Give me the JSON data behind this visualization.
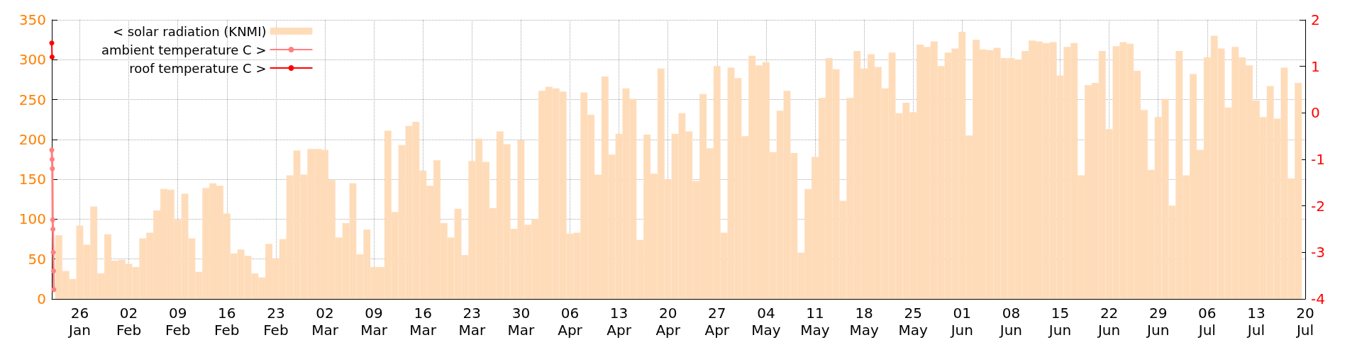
{
  "chart_data": {
    "type": "bar",
    "xlim": [
      "--01-22",
      "--07-20"
    ],
    "xticks": [
      {
        "value": "--01-26",
        "label": "26\nJan"
      },
      {
        "value": "--02-02",
        "label": "02\nFeb"
      },
      {
        "value": "--02-09",
        "label": "09\nFeb"
      },
      {
        "value": "--02-16",
        "label": "16\nFeb"
      },
      {
        "value": "--02-23",
        "label": "23\nFeb"
      },
      {
        "value": "--03-02",
        "label": "02\nMar"
      },
      {
        "value": "--03-09",
        "label": "09\nMar"
      },
      {
        "value": "--03-16",
        "label": "16\nMar"
      },
      {
        "value": "--03-23",
        "label": "23\nMar"
      },
      {
        "value": "--03-30",
        "label": "30\nMar"
      },
      {
        "value": "--04-06",
        "label": "06\nApr"
      },
      {
        "value": "--04-13",
        "label": "13\nApr"
      },
      {
        "value": "--04-20",
        "label": "20\nApr"
      },
      {
        "value": "--04-27",
        "label": "27\nApr"
      },
      {
        "value": "--05-04",
        "label": "04\nMay"
      },
      {
        "value": "--05-11",
        "label": "11\nMay"
      },
      {
        "value": "--05-18",
        "label": "18\nMay"
      },
      {
        "value": "--05-25",
        "label": "25\nMay"
      },
      {
        "value": "--06-01",
        "label": "01\nJun"
      },
      {
        "value": "--06-08",
        "label": "08\nJun"
      },
      {
        "value": "--06-15",
        "label": "15\nJun"
      },
      {
        "value": "--06-22",
        "label": "22\nJun"
      },
      {
        "value": "--06-29",
        "label": "29\nJun"
      },
      {
        "value": "--07-06",
        "label": "06\nJul"
      },
      {
        "value": "--07-13",
        "label": "13\nJul"
      },
      {
        "value": "--07-20",
        "label": "20\nJul"
      }
    ],
    "ylim": [
      0,
      350
    ],
    "yticks": [
      0,
      50,
      100,
      150,
      200,
      250,
      300,
      350
    ],
    "y2lim": [
      -4,
      2
    ],
    "y2ticks": [
      -4,
      -3,
      -2,
      -1,
      0,
      1,
      2
    ],
    "grid": true,
    "legend": "top left",
    "series": [
      {
        "name": "< solar radiation (KNMI)",
        "color": "#ffdcb9",
        "x": [
          "--01-23",
          "--01-24",
          "--01-25",
          "--01-26",
          "--01-27",
          "--01-28",
          "--01-29",
          "--01-30",
          "--01-31",
          "--02-01",
          "--02-02",
          "--02-03",
          "--02-04",
          "--02-05",
          "--02-06",
          "--02-07",
          "--02-08",
          "--02-09",
          "--02-10",
          "--02-11",
          "--02-12",
          "--02-13",
          "--02-14",
          "--02-15",
          "--02-16",
          "--02-17",
          "--02-18",
          "--02-19",
          "--02-20",
          "--02-21",
          "--02-22",
          "--02-23",
          "--02-24",
          "--02-25",
          "--02-26",
          "--02-27",
          "--02-28",
          "--03-01",
          "--03-02",
          "--03-03",
          "--03-04",
          "--03-05",
          "--03-06",
          "--03-07",
          "--03-08",
          "--03-09",
          "--03-10",
          "--03-11",
          "--03-12",
          "--03-13",
          "--03-14",
          "--03-15",
          "--03-16",
          "--03-17",
          "--03-18",
          "--03-19",
          "--03-20",
          "--03-21",
          "--03-22",
          "--03-23",
          "--03-24",
          "--03-25",
          "--03-26",
          "--03-27",
          "--03-28",
          "--03-29",
          "--03-30",
          "--03-31",
          "--04-01",
          "--04-02",
          "--04-03",
          "--04-04",
          "--04-05",
          "--04-06",
          "--04-07",
          "--04-08",
          "--04-09",
          "--04-10",
          "--04-11",
          "--04-12",
          "--04-13",
          "--04-14",
          "--04-15",
          "--04-16",
          "--04-17",
          "--04-18",
          "--04-19",
          "--04-20",
          "--04-21",
          "--04-22",
          "--04-23",
          "--04-24",
          "--04-25",
          "--04-26",
          "--04-27",
          "--04-28",
          "--04-29",
          "--04-30",
          "--05-01",
          "--05-02",
          "--05-03",
          "--05-04",
          "--05-05",
          "--05-06",
          "--05-07",
          "--05-08",
          "--05-09",
          "--05-10",
          "--05-11",
          "--05-12",
          "--05-13",
          "--05-14",
          "--05-15",
          "--05-16",
          "--05-17",
          "--05-18",
          "--05-19",
          "--05-20",
          "--05-21",
          "--05-22",
          "--05-23",
          "--05-24",
          "--05-25",
          "--05-26",
          "--05-27",
          "--05-28",
          "--05-29",
          "--05-30",
          "--05-31",
          "--06-01",
          "--06-02",
          "--06-03",
          "--06-04",
          "--06-05",
          "--06-06",
          "--06-07",
          "--06-08",
          "--06-09",
          "--06-10",
          "--06-11",
          "--06-12",
          "--06-13",
          "--06-14",
          "--06-15",
          "--06-16",
          "--06-17",
          "--06-18",
          "--06-19",
          "--06-20",
          "--06-21",
          "--06-22",
          "--06-23",
          "--06-24",
          "--06-25",
          "--06-26",
          "--06-27",
          "--06-28",
          "--06-29",
          "--06-30",
          "--07-01",
          "--07-02",
          "--07-03",
          "--07-04",
          "--07-05",
          "--07-06",
          "--07-07",
          "--07-08",
          "--07-09",
          "--07-10",
          "--07-11",
          "--07-12",
          "--07-13",
          "--07-14",
          "--07-15",
          "--07-16",
          "--07-17",
          "--07-18",
          "--07-19"
        ],
        "values": [
          80,
          35,
          25,
          92,
          68,
          116,
          32,
          81,
          48,
          49,
          44,
          40,
          76,
          83,
          111,
          138,
          137,
          99,
          132,
          76,
          34,
          139,
          145,
          142,
          107,
          57,
          62,
          54,
          32,
          27,
          69,
          51,
          75,
          155,
          186,
          156,
          188,
          188,
          187,
          149,
          77,
          95,
          145,
          56,
          87,
          40,
          40,
          211,
          109,
          193,
          217,
          222,
          161,
          142,
          174,
          95,
          77,
          113,
          55,
          173,
          201,
          172,
          114,
          210,
          194,
          88,
          199,
          93,
          100,
          261,
          266,
          264,
          260,
          82,
          83,
          259,
          231,
          156,
          279,
          181,
          207,
          264,
          251,
          74,
          206,
          157,
          289,
          150,
          207,
          233,
          210,
          148,
          257,
          189,
          292,
          83,
          290,
          277,
          204,
          305,
          293,
          297,
          184,
          236,
          261,
          183,
          58,
          138,
          178,
          252,
          302,
          288,
          123,
          252,
          311,
          289,
          307,
          291,
          264,
          309,
          233,
          246,
          234,
          319,
          316,
          323,
          292,
          309,
          314,
          335,
          205,
          325,
          313,
          312,
          315,
          302,
          302,
          300,
          311,
          324,
          323,
          321,
          322,
          280,
          316,
          321,
          155,
          268,
          271,
          311,
          213,
          317,
          322,
          320,
          286,
          237,
          162,
          228,
          251,
          117,
          311,
          155,
          282,
          187,
          303,
          330,
          314,
          240,
          316,
          303,
          293,
          249,
          228,
          267,
          226,
          290,
          151,
          271
        ]
      },
      {
        "name": "ambient temperature C >",
        "type": "line",
        "axis": "y2",
        "color": "#ff7f7f",
        "marker": "circle",
        "x": [
          "--01-22T00:00",
          "--01-22T01:00",
          "--01-22T02:00",
          "--01-22T03:00",
          "--01-22T04:00",
          "--01-22T05:00",
          "--01-22T06:00",
          "--01-22T07:00"
        ],
        "values": [
          -0.8,
          -1.0,
          -1.2,
          -2.3,
          -2.5,
          -3.0,
          -3.4,
          -3.8
        ]
      },
      {
        "name": "roof temperature C >",
        "type": "line",
        "axis": "y2",
        "color": "#ff0000",
        "marker": "circle",
        "x": [
          "--01-22T00:00",
          "--01-22T01:00"
        ],
        "values": [
          1.5,
          1.2
        ]
      }
    ]
  }
}
